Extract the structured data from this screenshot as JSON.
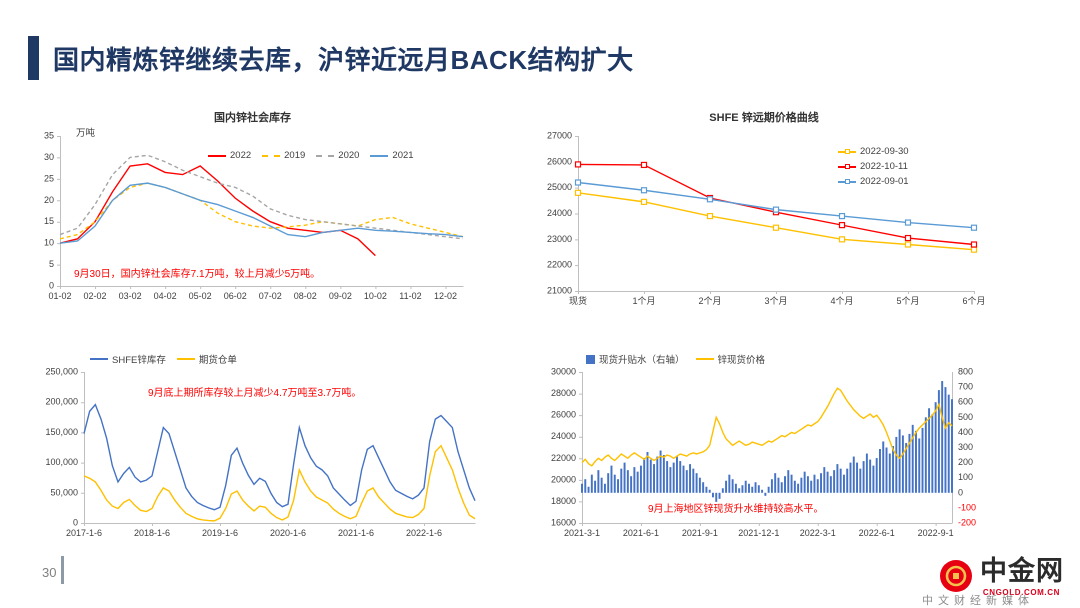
{
  "header": {
    "title": "国内精炼锌继续去库，沪锌近远月BACK结构扩大",
    "accent_color": "#1F3864"
  },
  "footer": {
    "page_number": "30",
    "logo": {
      "name": "中金网",
      "domain": "CNGOLD.COM.CN",
      "tagline": "中文财经新媒体",
      "brand_color": "#E60012"
    }
  },
  "chart_data": [
    {
      "type": "line",
      "title": "国内锌社会库存",
      "ylabel": "万吨",
      "ylim": [
        0,
        35
      ],
      "yticks": [
        0,
        5,
        10,
        15,
        20,
        25,
        30,
        35
      ],
      "x_labels": [
        "01-02",
        "02-02",
        "03-02",
        "04-02",
        "05-02",
        "06-02",
        "07-02",
        "08-02",
        "09-02",
        "10-02",
        "11-02",
        "12-02"
      ],
      "x_label_every": 2,
      "n": 24,
      "grid": false,
      "legend_position": "inside-top",
      "annotation": "9月30日，国内锌社会库存7.1万吨，较上月减少5万吨。",
      "annotation_color": "#FF0000",
      "series": [
        {
          "name": "2022",
          "color": "#FF0000",
          "dash": false,
          "values": [
            10,
            11,
            15,
            22,
            28,
            28.5,
            26.5,
            26,
            28,
            24.5,
            20.5,
            17.5,
            15,
            13.5,
            13,
            12.5,
            13,
            11,
            7.1,
            null,
            null,
            null,
            null,
            null
          ]
        },
        {
          "name": "2019",
          "color": "#FFC000",
          "dash": true,
          "values": [
            11,
            12,
            15,
            20,
            23,
            24,
            23,
            21.5,
            20,
            17,
            15,
            14,
            13.5,
            13.8,
            14.2,
            15,
            14.5,
            14,
            15.5,
            16,
            14.5,
            13.5,
            12.5,
            11.5
          ]
        },
        {
          "name": "2020",
          "color": "#A6A6A6",
          "dash": true,
          "values": [
            12,
            13.5,
            19,
            26,
            30,
            30.5,
            29,
            27,
            25.5,
            24,
            23,
            21,
            18,
            16.5,
            15.5,
            15,
            14.5,
            14,
            13.5,
            13,
            12.5,
            12,
            11.5,
            11
          ]
        },
        {
          "name": "2021",
          "color": "#5B9BD5",
          "dash": false,
          "values": [
            10,
            10.5,
            14,
            20,
            23.5,
            24,
            23,
            21.5,
            20,
            19,
            17.5,
            16,
            14,
            12,
            11.5,
            12.5,
            13,
            13.5,
            13,
            12.8,
            12.5,
            12.2,
            12,
            11.5
          ]
        }
      ]
    },
    {
      "type": "line",
      "title": "SHFE 锌远期价格曲线",
      "ylim": [
        21000,
        27000
      ],
      "yticks": [
        21000,
        22000,
        23000,
        24000,
        25000,
        26000,
        27000
      ],
      "x_labels": [
        "现货",
        "1个月",
        "2个月",
        "3个月",
        "4个月",
        "5个月",
        "6个月"
      ],
      "x_label_every": 1,
      "n": 7,
      "grid": false,
      "legend_position": "inside-top-right",
      "series": [
        {
          "name": "2022-09-30",
          "color": "#FFC000",
          "marker": "square",
          "values": [
            24800,
            24450,
            23900,
            23450,
            23000,
            22800,
            22600
          ]
        },
        {
          "name": "2022-10-11",
          "color": "#FF0000",
          "marker": "square",
          "values": [
            25900,
            25880,
            24600,
            24050,
            23550,
            23050,
            22800
          ]
        },
        {
          "name": "2022-09-01",
          "color": "#5B9BD5",
          "marker": "square",
          "values": [
            25200,
            24900,
            24550,
            24150,
            23900,
            23650,
            23450
          ]
        }
      ]
    },
    {
      "type": "line",
      "title": "",
      "ylim": [
        0,
        250000
      ],
      "yticks": [
        0,
        50000,
        100000,
        150000,
        200000,
        250000
      ],
      "ytick_format": "comma",
      "x_labels": [
        "2017-1-6",
        "2018-1-6",
        "2019-1-6",
        "2020-1-6",
        "2021-1-6",
        "2022-1-6"
      ],
      "x_label_every": 12,
      "n": 70,
      "grid": false,
      "legend_position": "top",
      "annotation": "9月底上期所库存较上月减少4.7万吨至3.7万吨。",
      "annotation_color": "#FF0000",
      "series": [
        {
          "name": "SHFE锌库存",
          "color": "#4472C4",
          "values": [
            148000,
            185000,
            196000,
            172000,
            140000,
            95000,
            68000,
            82000,
            92000,
            76000,
            68000,
            71000,
            78000,
            118000,
            158000,
            148000,
            118000,
            88000,
            58000,
            44000,
            34000,
            29000,
            25000,
            22000,
            26000,
            62000,
            112000,
            124000,
            99000,
            79000,
            64000,
            74000,
            69000,
            49000,
            34000,
            27000,
            31000,
            98000,
            158000,
            128000,
            108000,
            94000,
            88000,
            78000,
            58000,
            48000,
            38000,
            29000,
            36000,
            88000,
            122000,
            128000,
            108000,
            88000,
            68000,
            54000,
            49000,
            44000,
            40000,
            46000,
            58000,
            135000,
            172000,
            178000,
            168000,
            158000,
            118000,
            88000,
            58000,
            37000
          ]
        },
        {
          "name": "期货仓单",
          "color": "#FFC000",
          "values": [
            78000,
            74000,
            68000,
            54000,
            38000,
            28000,
            24000,
            34000,
            39000,
            29000,
            21000,
            19000,
            24000,
            44000,
            58000,
            53000,
            38000,
            26000,
            16000,
            11000,
            7000,
            5000,
            4000,
            3500,
            8000,
            24000,
            48000,
            53000,
            38000,
            28000,
            20000,
            28000,
            26000,
            16000,
            9000,
            5000,
            10000,
            38000,
            88000,
            68000,
            53000,
            43000,
            38000,
            33000,
            23000,
            16000,
            11000,
            7000,
            11000,
            33000,
            53000,
            58000,
            43000,
            33000,
            23000,
            16000,
            13000,
            10000,
            9000,
            14000,
            24000,
            78000,
            118000,
            128000,
            108000,
            88000,
            58000,
            33000,
            13000,
            7000
          ]
        }
      ]
    },
    {
      "type": "combo",
      "title": "",
      "ylim": [
        16000,
        30000
      ],
      "yticks": [
        16000,
        18000,
        20000,
        22000,
        24000,
        26000,
        28000,
        30000
      ],
      "ylim_right": [
        -200,
        800
      ],
      "yticks_right": [
        -200,
        -100,
        0,
        100,
        200,
        300,
        400,
        500,
        600,
        700,
        800
      ],
      "x_labels": [
        "2021-3-1",
        "2021-6-1",
        "2021-9-1",
        "2021-12-1",
        "2022-3-1",
        "2022-6-1",
        "2022-9-1"
      ],
      "x_label_every": 18,
      "n": 114,
      "grid": false,
      "legend_position": "top",
      "annotation": "9月上海地区锌现货升水维持较高水平。",
      "annotation_color": "#FF0000",
      "bar_series": {
        "name": "现货升贴水（右轴）",
        "color": "#4472C4",
        "axis": "right",
        "values": [
          60,
          90,
          40,
          120,
          80,
          150,
          100,
          60,
          130,
          180,
          120,
          90,
          160,
          200,
          150,
          110,
          170,
          140,
          180,
          230,
          270,
          220,
          190,
          240,
          280,
          250,
          210,
          170,
          200,
          240,
          210,
          180,
          150,
          190,
          160,
          130,
          100,
          70,
          40,
          20,
          -30,
          -60,
          -40,
          30,
          80,
          120,
          90,
          60,
          30,
          50,
          80,
          60,
          40,
          70,
          50,
          20,
          -20,
          40,
          90,
          130,
          100,
          70,
          110,
          150,
          120,
          80,
          60,
          100,
          140,
          110,
          80,
          120,
          90,
          130,
          170,
          140,
          110,
          150,
          190,
          160,
          120,
          160,
          200,
          240,
          200,
          160,
          210,
          260,
          220,
          180,
          230,
          290,
          340,
          300,
          260,
          310,
          370,
          420,
          380,
          330,
          390,
          450,
          410,
          360,
          430,
          500,
          560,
          520,
          600,
          680,
          740,
          700,
          650,
          620
        ]
      },
      "series": [
        {
          "name": "锌现货价格",
          "color": "#FFC000",
          "values": [
            21600,
            21900,
            21500,
            21300,
            21700,
            22000,
            21800,
            22100,
            22300,
            22000,
            21800,
            22100,
            22400,
            22200,
            22000,
            22300,
            22500,
            22300,
            22100,
            21900,
            22200,
            22000,
            21800,
            22000,
            22200,
            22100,
            22300,
            22200,
            22000,
            22200,
            22400,
            22300,
            22200,
            22400,
            22500,
            22400,
            22500,
            22600,
            22800,
            23200,
            24500,
            25800,
            25200,
            24400,
            23800,
            23500,
            23200,
            23400,
            23600,
            23400,
            23200,
            23300,
            23500,
            23400,
            23300,
            23200,
            23400,
            23600,
            23500,
            23700,
            23900,
            24100,
            24000,
            24200,
            24400,
            24300,
            24500,
            24700,
            24900,
            25100,
            25000,
            25200,
            25400,
            25800,
            26300,
            26800,
            27400,
            28000,
            28500,
            28300,
            27800,
            27300,
            26900,
            26500,
            26200,
            25900,
            25700,
            25900,
            26100,
            25800,
            26000,
            25600,
            25100,
            24400,
            23600,
            22800,
            22300,
            22000,
            22400,
            22900,
            23400,
            23900,
            24400,
            24800,
            25100,
            25400,
            25700,
            26000,
            26400,
            27000,
            25800,
            24800,
            25300,
            25000
          ]
        }
      ]
    }
  ]
}
